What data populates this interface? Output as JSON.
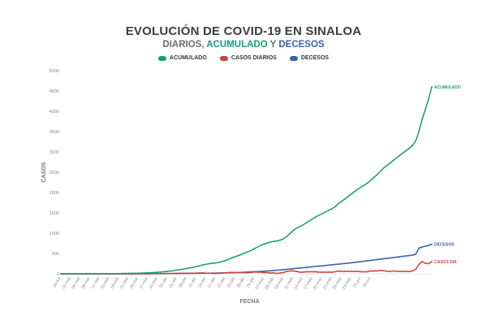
{
  "chart_data": {
    "type": "line",
    "title": "EVOLUCIÓN DE COVID-19 EN SINALOA",
    "subtitle": {
      "part1": "DIARIOS, ",
      "part2": "ACUMULADO",
      "part3": " Y ",
      "part4": "DECESOS"
    },
    "xlabel": "FECHA",
    "ylabel": "CASOS",
    "ylim": [
      0,
      5000
    ],
    "yticks": [
      "0",
      "500",
      "1000",
      "1500",
      "2000",
      "2500",
      "3000",
      "3500",
      "4000",
      "4500",
      "5000"
    ],
    "ytick_values": [
      0,
      500,
      1000,
      1500,
      2000,
      2500,
      3000,
      3500,
      4000,
      4500,
      5000
    ],
    "xticks": [
      "29-feb",
      "03-mar",
      "06-mar",
      "09-mar",
      "12-mar",
      "15-mar",
      "18-mar",
      "21-mar",
      "24-mar",
      "27-mar",
      "30-mar",
      "02-abr",
      "05-abr",
      "08-abr",
      "11-abr",
      "14-abr",
      "17-abr",
      "20-abr",
      "23-abr",
      "26-abr",
      "29-abr",
      "02-may",
      "05-may",
      "08-may",
      "11-may",
      "14-may",
      "17-may",
      "20-may",
      "23-may",
      "26-may",
      "29-may",
      "01-jun",
      "04-jun"
    ],
    "grid": false,
    "legend": "top-center",
    "series": [
      {
        "name": "ACUMULADO",
        "end_label": "ACUMULADO",
        "color": "#1a9e7a",
        "values": [
          1,
          1,
          1,
          1,
          1,
          1,
          1,
          1,
          1,
          2,
          2,
          3,
          3,
          3,
          3,
          4,
          4,
          5,
          6,
          8,
          9,
          10,
          12,
          13,
          15,
          18,
          21,
          24,
          28,
          33,
          38,
          45,
          52,
          60,
          68,
          80,
          92,
          104,
          118,
          130,
          145,
          160,
          178,
          198,
          220,
          235,
          250,
          260,
          270,
          282,
          300,
          325,
          355,
          390,
          420,
          450,
          480,
          510,
          540,
          575,
          620,
          660,
          700,
          730,
          760,
          780,
          800,
          810,
          830,
          860,
          920,
          990,
          1060,
          1120,
          1160,
          1200,
          1250,
          1300,
          1350,
          1400,
          1440,
          1480,
          1520,
          1560,
          1600,
          1650,
          1720,
          1780,
          1840,
          1900,
          1960,
          2020,
          2080,
          2130,
          2180,
          2230,
          2300,
          2370,
          2440,
          2520,
          2600,
          2660,
          2720,
          2790,
          2850,
          2910,
          2970,
          3030,
          3090,
          3160,
          3270,
          3500,
          3800,
          4050,
          4300,
          4600
        ]
      },
      {
        "name": "CASOS DIARIOS",
        "end_label": "CASOS DIA",
        "color": "#c9473b",
        "values": [
          1,
          0,
          0,
          0,
          0,
          0,
          0,
          0,
          0,
          1,
          0,
          1,
          0,
          0,
          0,
          1,
          0,
          1,
          1,
          2,
          1,
          1,
          2,
          1,
          2,
          3,
          3,
          3,
          4,
          5,
          5,
          7,
          7,
          8,
          8,
          12,
          12,
          12,
          14,
          12,
          15,
          15,
          18,
          20,
          22,
          15,
          15,
          10,
          10,
          12,
          18,
          25,
          30,
          35,
          30,
          30,
          30,
          30,
          30,
          35,
          45,
          40,
          40,
          30,
          30,
          20,
          20,
          10,
          20,
          30,
          60,
          70,
          70,
          60,
          40,
          40,
          50,
          50,
          50,
          50,
          40,
          40,
          40,
          40,
          40,
          50,
          70,
          60,
          60,
          60,
          60,
          60,
          60,
          50,
          50,
          50,
          70,
          70,
          70,
          80,
          80,
          60,
          60,
          70,
          60,
          60,
          60,
          60,
          60,
          70,
          110,
          230,
          300,
          260,
          250,
          300
        ]
      },
      {
        "name": "DECESOS",
        "end_label": "DECESOS",
        "color": "#3a5fa8",
        "values": [
          0,
          0,
          0,
          0,
          0,
          0,
          0,
          0,
          0,
          0,
          0,
          0,
          0,
          0,
          0,
          0,
          0,
          0,
          0,
          0,
          0,
          0,
          0,
          0,
          0,
          1,
          1,
          1,
          2,
          2,
          3,
          3,
          4,
          4,
          5,
          5,
          6,
          7,
          8,
          9,
          10,
          11,
          12,
          13,
          14,
          15,
          16,
          17,
          18,
          20,
          22,
          24,
          26,
          28,
          30,
          33,
          36,
          40,
          44,
          48,
          52,
          56,
          60,
          65,
          70,
          76,
          82,
          88,
          95,
          102,
          110,
          118,
          126,
          134,
          142,
          150,
          158,
          166,
          174,
          182,
          190,
          198,
          206,
          214,
          222,
          230,
          238,
          246,
          254,
          262,
          270,
          280,
          290,
          300,
          310,
          320,
          330,
          340,
          350,
          360,
          370,
          380,
          390,
          400,
          410,
          420,
          430,
          440,
          450,
          460,
          480,
          630,
          660,
          680,
          700,
          730
        ]
      }
    ]
  }
}
